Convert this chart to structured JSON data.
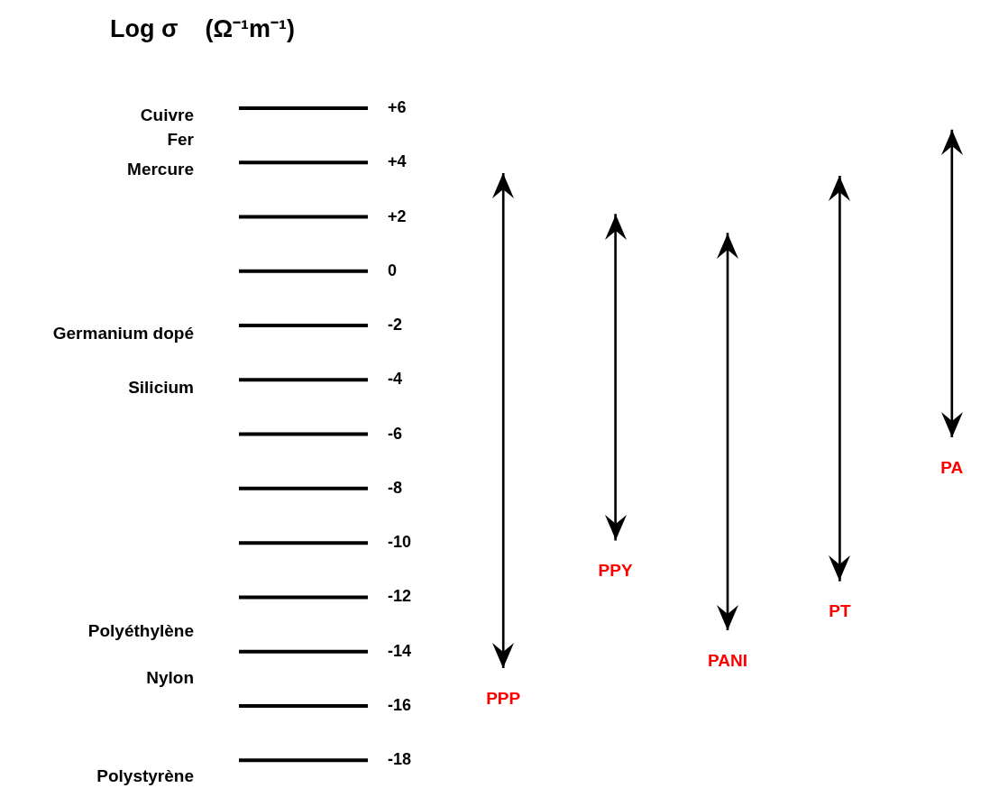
{
  "chart_data": {
    "type": "bar",
    "ylabel": "Log σ    (Ω⁻¹m⁻¹)",
    "categories": [
      "PPP",
      "PPY",
      "PANI",
      "PT",
      "PA"
    ],
    "base": [
      -14.6,
      -9.9,
      -13.2,
      -11.4,
      -6.1
    ],
    "values": [
      18.2,
      12.0,
      14.6,
      14.9,
      11.3
    ],
    "color": "#000000",
    "ylim": [
      -18,
      6
    ],
    "yticks": [
      {
        "value": 6,
        "label": "+6"
      },
      {
        "value": 4,
        "label": "+4"
      },
      {
        "value": 2,
        "label": "+2"
      },
      0,
      -2,
      -4,
      -6,
      -8,
      -10,
      -12,
      -14,
      -16,
      -18
    ],
    "grid": false,
    "legend": false,
    "annotations": [
      "Cuivre",
      "Fer",
      "Mercure",
      "Germanium dopé",
      "Silicium",
      "Polyéthylène",
      "Nylon",
      "Polystyrène"
    ]
  }
}
